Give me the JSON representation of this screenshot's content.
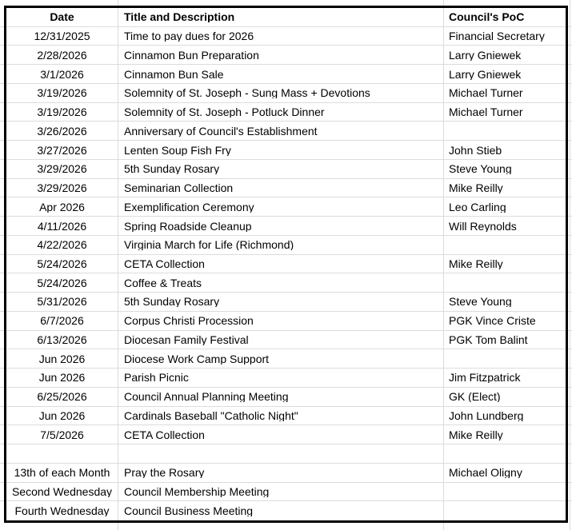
{
  "table": {
    "columns": [
      {
        "label": "Date"
      },
      {
        "label": "Title and Description"
      },
      {
        "label": "Council's PoC"
      }
    ],
    "rows": [
      {
        "date": "12/31/2025",
        "title": "Time to pay dues for 2026",
        "poc": "Financial Secretary"
      },
      {
        "date": "2/28/2026",
        "title": "Cinnamon Bun Preparation",
        "poc": "Larry Gniewek"
      },
      {
        "date": "3/1/2026",
        "title": "Cinnamon Bun Sale",
        "poc": "Larry Gniewek"
      },
      {
        "date": "3/19/2026",
        "title": "Solemnity of St. Joseph - Sung Mass + Devotions",
        "poc": "Michael Turner"
      },
      {
        "date": "3/19/2026",
        "title": "Solemnity of St. Joseph - Potluck Dinner",
        "poc": "Michael Turner"
      },
      {
        "date": "3/26/2026",
        "title": "Anniversary of Council's Establishment",
        "poc": ""
      },
      {
        "date": "3/27/2026",
        "title": "Lenten Soup Fish Fry",
        "poc": "John Stieb"
      },
      {
        "date": "3/29/2026",
        "title": "5th Sunday Rosary",
        "poc": "Steve Young"
      },
      {
        "date": "3/29/2026",
        "title": "Seminarian Collection",
        "poc": "Mike Reilly"
      },
      {
        "date": "Apr 2026",
        "title": "Exemplification Ceremony",
        "poc": "Leo Carling"
      },
      {
        "date": "4/11/2026",
        "title": "Spring Roadside Cleanup",
        "poc": "Will Reynolds"
      },
      {
        "date": "4/22/2026",
        "title": "Virginia March for Life (Richmond)",
        "poc": ""
      },
      {
        "date": "5/24/2026",
        "title": "CETA Collection",
        "poc": "Mike Reilly"
      },
      {
        "date": "5/24/2026",
        "title": "Coffee & Treats",
        "poc": ""
      },
      {
        "date": "5/31/2026",
        "title": "5th Sunday Rosary",
        "poc": "Steve Young"
      },
      {
        "date": "6/7/2026",
        "title": "Corpus Christi Procession",
        "poc": "PGK Vince Criste"
      },
      {
        "date": "6/13/2026",
        "title": "Diocesan Family Festival",
        "poc": "PGK Tom Balint"
      },
      {
        "date": "Jun 2026",
        "title": "Diocese Work Camp Support",
        "poc": ""
      },
      {
        "date": "Jun 2026",
        "title": "Parish Picnic",
        "poc": "Jim Fitzpatrick"
      },
      {
        "date": "6/25/2026",
        "title": "Council Annual Planning Meeting",
        "poc": "GK (Elect)"
      },
      {
        "date": "Jun 2026",
        "title": "Cardinals Baseball \"Catholic Night\"",
        "poc": "John Lundberg"
      },
      {
        "date": "7/5/2026",
        "title": "CETA Collection",
        "poc": "Mike Reilly"
      },
      {
        "date": "",
        "title": "",
        "poc": ""
      },
      {
        "date": "13th of each Month",
        "title": "Pray the Rosary",
        "poc": "Michael Oligny"
      },
      {
        "date": "Second Wednesday",
        "title": "Council Membership Meeting",
        "poc": ""
      },
      {
        "date": "Fourth Wednesday",
        "title": "Council Business Meeting",
        "poc": ""
      }
    ]
  },
  "colors": {
    "background": "#ffffff",
    "text": "#000000",
    "grid_line": "#dcdcdc",
    "range_border": "#000000"
  }
}
